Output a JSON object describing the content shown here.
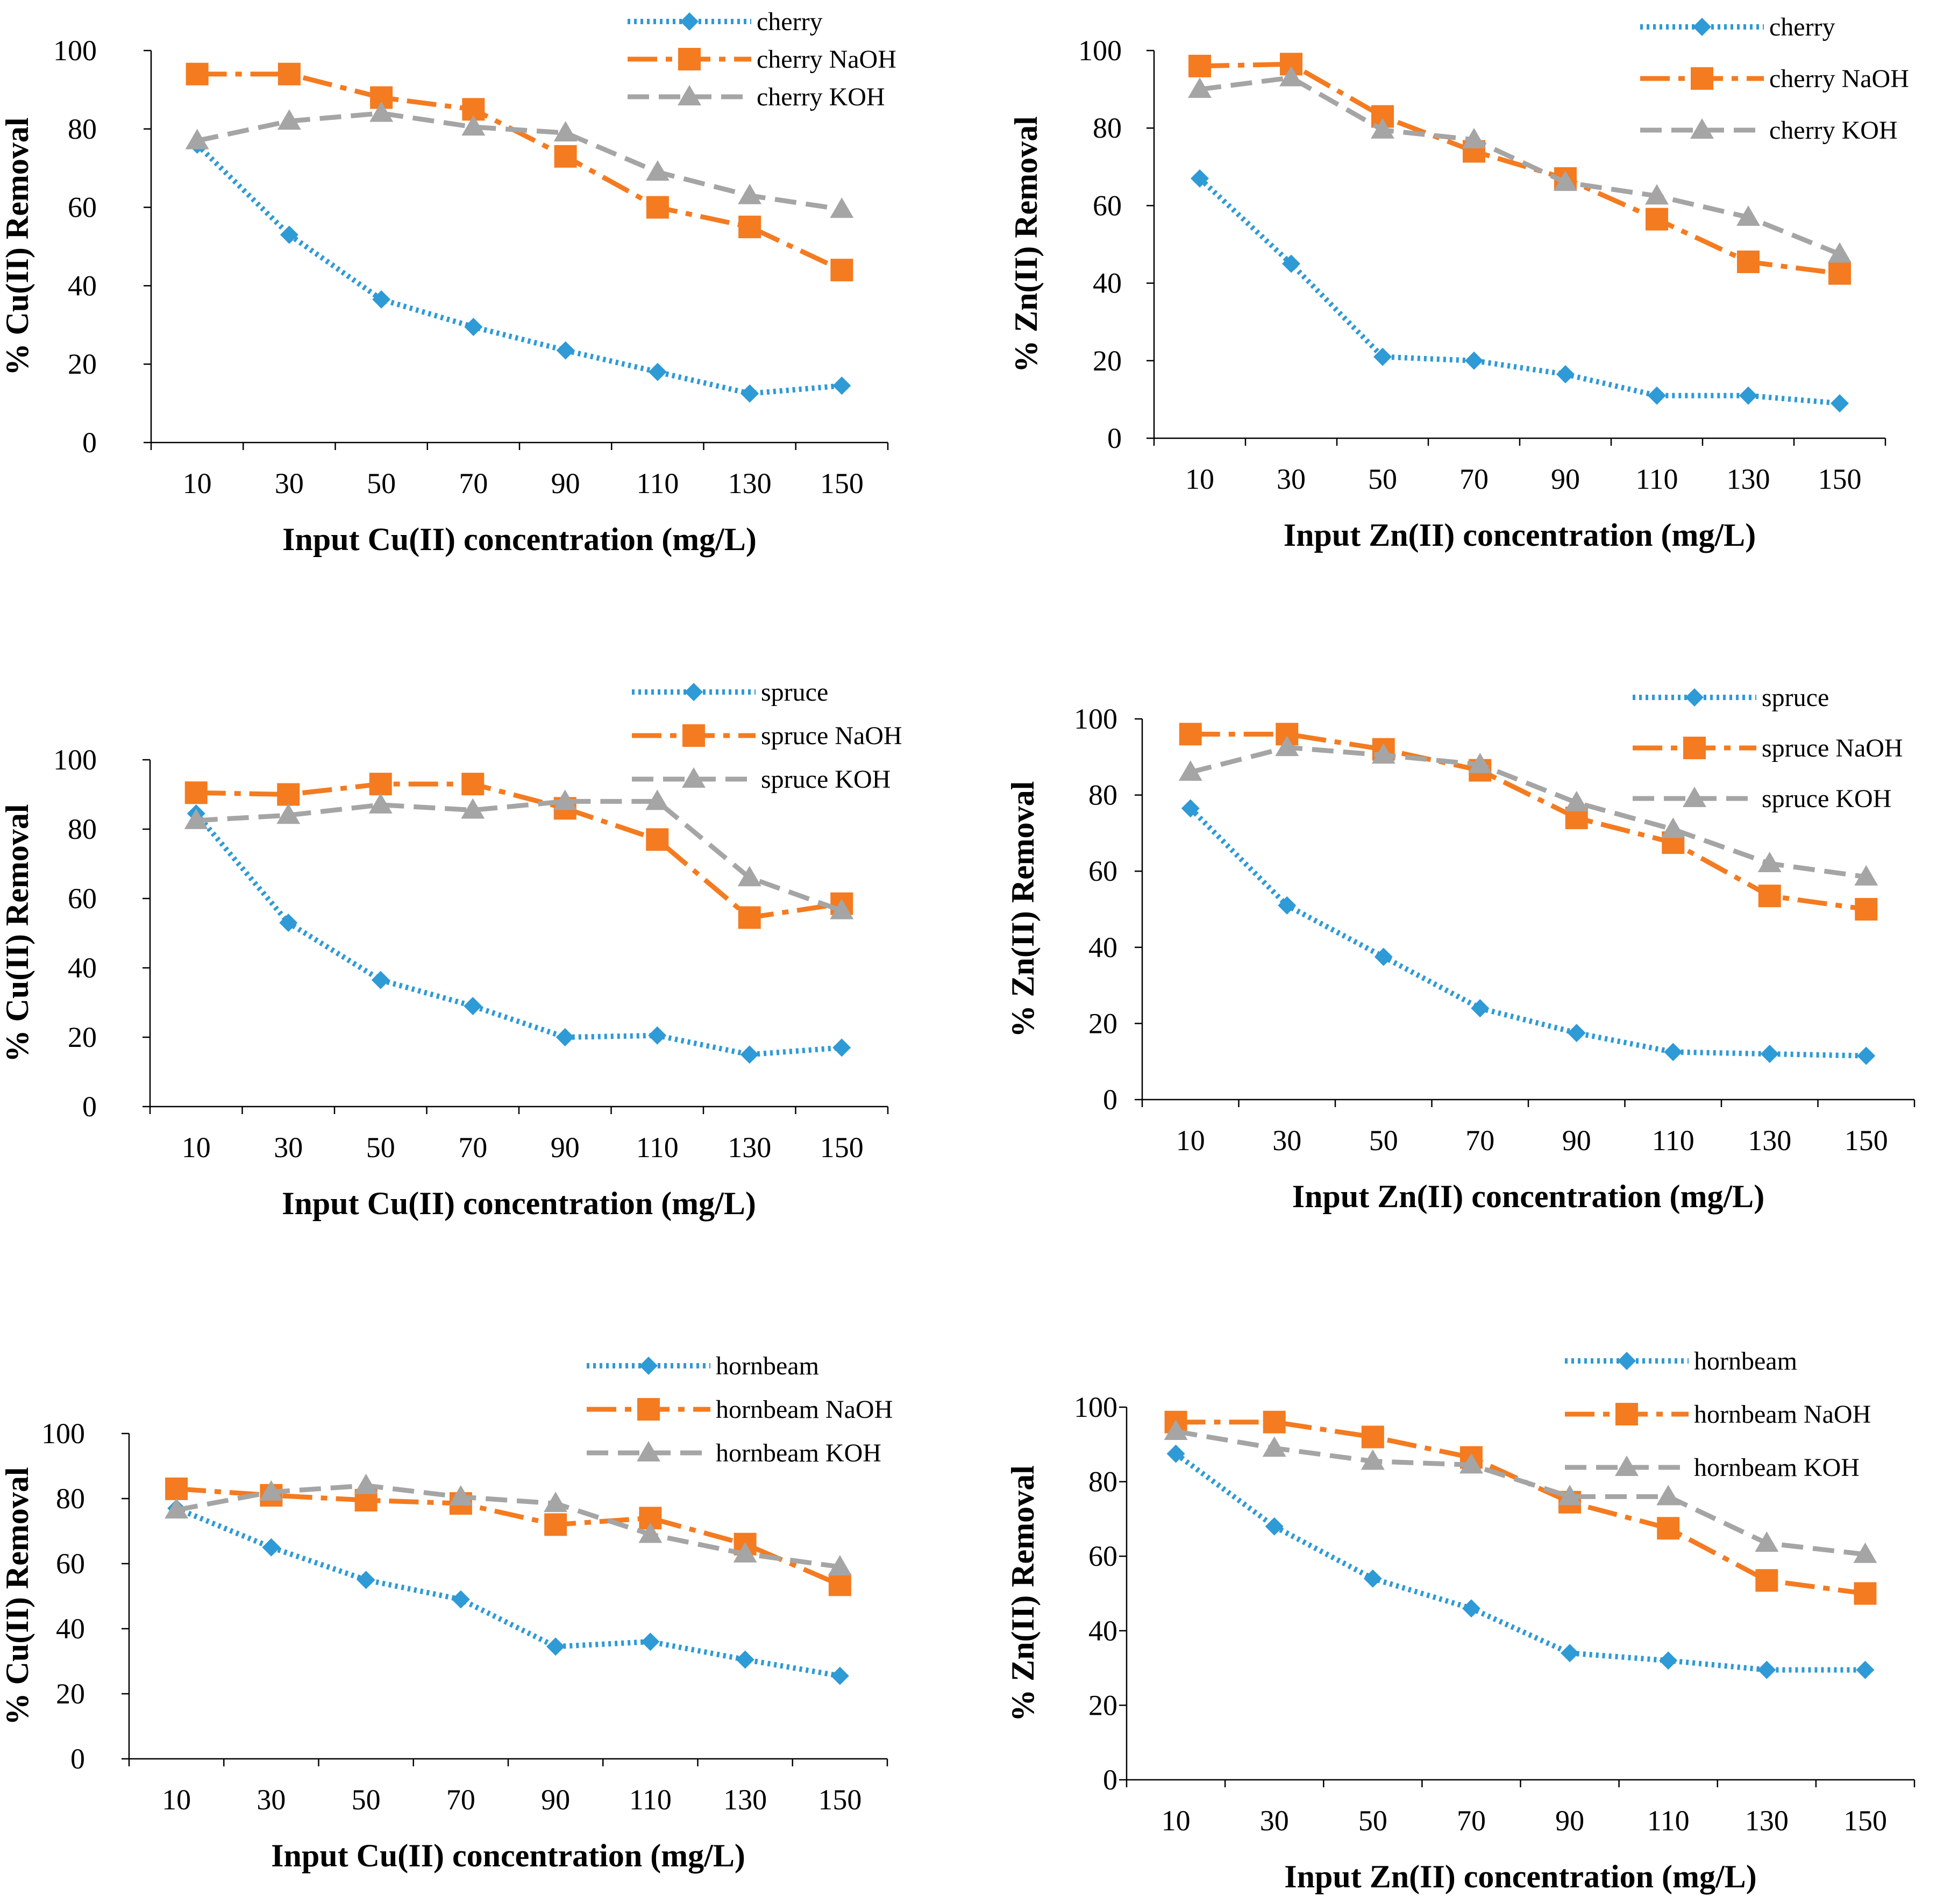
{
  "colors": {
    "blue": "#2e9ad6",
    "orange": "#f47b20",
    "gray": "#a5a5a5"
  },
  "chart_data": [
    {
      "type": "line",
      "title": "",
      "xlabel": "Input Cu(II) concentration (mg/L)",
      "ylabel": "% Cu(II) Removal",
      "categories": [
        "10",
        "30",
        "50",
        "70",
        "90",
        "110",
        "130",
        "150"
      ],
      "yticks": [
        "0",
        "20",
        "40",
        "60",
        "80",
        "100"
      ],
      "ylim": [
        0,
        100
      ],
      "legend_position": "top-right",
      "series": [
        {
          "name": "cherry",
          "marker": "diamond",
          "values": [
            76,
            53,
            36.5,
            29.5,
            23.5,
            18,
            12.5,
            14.5
          ]
        },
        {
          "name": "cherry NaOH",
          "marker": "square",
          "values": [
            94,
            94,
            88,
            85,
            73,
            60,
            55,
            44
          ]
        },
        {
          "name": "cherry KOH",
          "marker": "triangle",
          "values": [
            77,
            82,
            84,
            80.5,
            79,
            69,
            63,
            59.5
          ]
        }
      ]
    },
    {
      "type": "line",
      "title": "",
      "xlabel": "Input Zn(II) concentration (mg/L)",
      "ylabel": "% Zn(II) Removal",
      "categories": [
        "10",
        "30",
        "50",
        "70",
        "90",
        "110",
        "130",
        "150"
      ],
      "yticks": [
        "0",
        "20",
        "40",
        "60",
        "80",
        "100"
      ],
      "ylim": [
        0,
        100
      ],
      "legend_position": "top-right",
      "series": [
        {
          "name": "cherry",
          "marker": "diamond",
          "values": [
            67,
            45,
            21,
            20,
            16.5,
            11,
            11,
            9
          ]
        },
        {
          "name": "cherry NaOH",
          "marker": "square",
          "values": [
            96,
            96.5,
            83,
            74,
            67,
            56.5,
            45.5,
            42.5
          ]
        },
        {
          "name": "cherry KOH",
          "marker": "triangle",
          "values": [
            90,
            93,
            79.5,
            77,
            66,
            62.5,
            57,
            47.5
          ]
        }
      ]
    },
    {
      "type": "line",
      "title": "",
      "xlabel": "Input Cu(II) concentration (mg/L)",
      "ylabel": "% Cu(II) Removal",
      "categories": [
        "10",
        "30",
        "50",
        "70",
        "90",
        "110",
        "130",
        "150"
      ],
      "yticks": [
        "0",
        "20",
        "40",
        "60",
        "80",
        "100"
      ],
      "ylim": [
        0,
        100
      ],
      "legend_position": "top-right",
      "series": [
        {
          "name": "spruce",
          "marker": "diamond",
          "values": [
            84.5,
            53,
            36.5,
            29,
            20,
            20.5,
            15,
            17
          ]
        },
        {
          "name": "spruce NaOH",
          "marker": "square",
          "values": [
            90.5,
            90,
            93,
            93,
            86,
            77,
            54.5,
            58.5
          ]
        },
        {
          "name": "spruce KOH",
          "marker": "triangle",
          "values": [
            82.5,
            84,
            87,
            85.5,
            88,
            88,
            66,
            56.5
          ]
        }
      ]
    },
    {
      "type": "line",
      "title": "",
      "xlabel": "Input Zn(II) concentration (mg/L)",
      "ylabel": "% Zn(II) Removal",
      "categories": [
        "10",
        "30",
        "50",
        "70",
        "90",
        "110",
        "130",
        "150"
      ],
      "yticks": [
        "0",
        "20",
        "40",
        "60",
        "80",
        "100"
      ],
      "ylim": [
        0,
        100
      ],
      "legend_position": "top-right",
      "series": [
        {
          "name": "spruce",
          "marker": "diamond",
          "values": [
            76.5,
            51,
            37.5,
            24,
            17.5,
            12.5,
            12,
            11.5
          ]
        },
        {
          "name": "spruce NaOH",
          "marker": "square",
          "values": [
            96,
            96,
            92,
            86.5,
            74,
            67.5,
            53.5,
            50
          ]
        },
        {
          "name": "spruce KOH",
          "marker": "triangle",
          "values": [
            86,
            92.5,
            90.5,
            88,
            78,
            71,
            62,
            58.5
          ]
        }
      ]
    },
    {
      "type": "line",
      "title": "",
      "xlabel": "Input Cu(II) concentration (mg/L)",
      "ylabel": "% Cu(II) Removal",
      "categories": [
        "10",
        "30",
        "50",
        "70",
        "90",
        "110",
        "130",
        "150"
      ],
      "yticks": [
        "0",
        "20",
        "40",
        "60",
        "80",
        "100"
      ],
      "ylim": [
        0,
        100
      ],
      "legend_position": "top-right",
      "series": [
        {
          "name": "hornbeam",
          "marker": "diamond",
          "values": [
            77,
            65,
            55,
            49,
            34.5,
            36,
            30.5,
            25.5
          ]
        },
        {
          "name": "hornbeam NaOH",
          "marker": "square",
          "values": [
            83,
            81,
            79.5,
            78.5,
            72,
            74,
            66,
            53.5
          ]
        },
        {
          "name": "hornbeam KOH",
          "marker": "triangle",
          "values": [
            76.5,
            82,
            84,
            80.5,
            78.5,
            69,
            63,
            59
          ]
        }
      ]
    },
    {
      "type": "line",
      "title": "",
      "xlabel": "Input Zn(II) concentration (mg/L)",
      "ylabel": "% Zn(II) Removal",
      "categories": [
        "10",
        "30",
        "50",
        "70",
        "90",
        "110",
        "130",
        "150"
      ],
      "yticks": [
        "0",
        "20",
        "40",
        "60",
        "80",
        "100"
      ],
      "ylim": [
        0,
        100
      ],
      "legend_position": "top-right",
      "series": [
        {
          "name": "hornbeam",
          "marker": "diamond",
          "values": [
            87.5,
            68,
            54,
            46,
            34,
            32,
            29.5,
            29.5
          ]
        },
        {
          "name": "hornbeam NaOH",
          "marker": "square",
          "values": [
            96,
            96,
            92,
            86.5,
            74.5,
            67.5,
            53.5,
            50
          ]
        },
        {
          "name": "hornbeam KOH",
          "marker": "triangle",
          "values": [
            93.5,
            89,
            85.5,
            84.5,
            76,
            76,
            63.5,
            60.5
          ]
        }
      ]
    }
  ]
}
